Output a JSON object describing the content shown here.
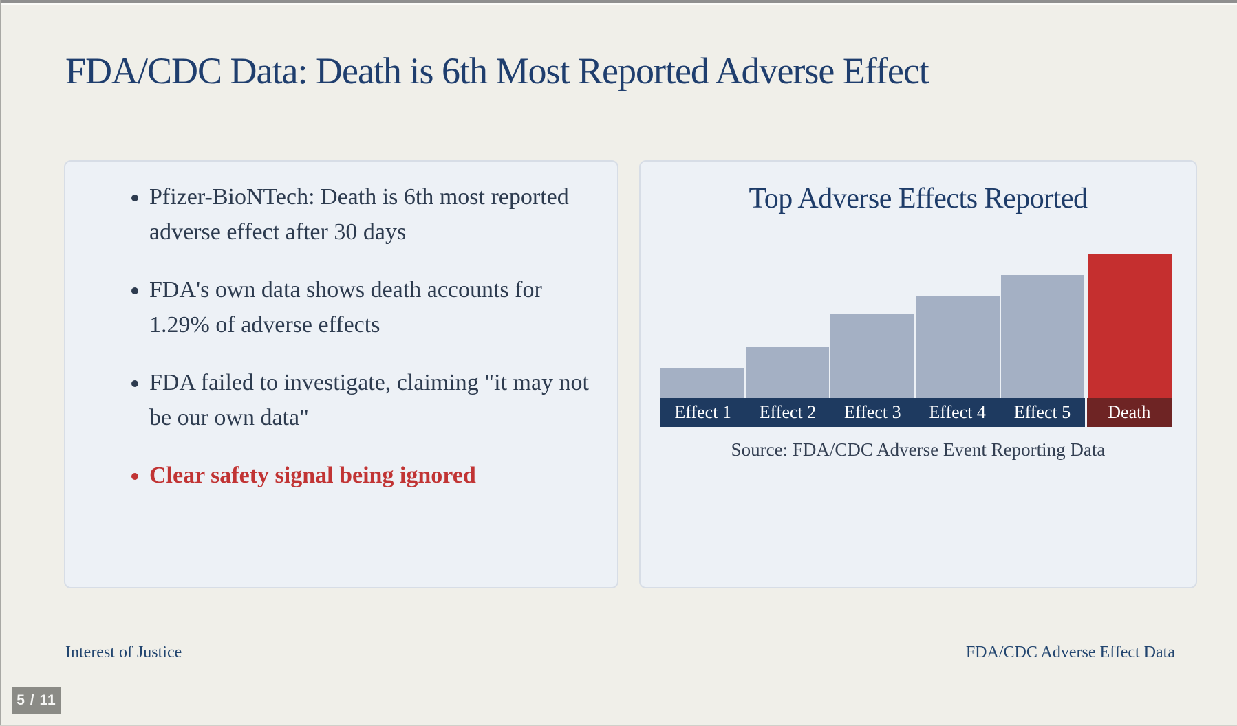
{
  "slide": {
    "title": "FDA/CDC Data: Death is 6th Most Reported Adverse Effect",
    "footer_left": "Interest of Justice",
    "footer_right": "FDA/CDC Adverse Effect Data",
    "page_indicator": "5 / 11"
  },
  "left_panel": {
    "bullets": [
      {
        "text": "Pfizer-BioNTech: Death is 6th most reported adverse effect after 30 days",
        "emphasis": false
      },
      {
        "text": "FDA's own data shows death accounts for 1.29% of adverse effects",
        "emphasis": false
      },
      {
        "text": "FDA failed to investigate, claiming \"it may not be our own data\"",
        "emphasis": false
      },
      {
        "text": "Clear safety signal being ignored",
        "emphasis": true
      }
    ]
  },
  "chart_data": {
    "type": "bar",
    "title": "Top Adverse Effects Reported",
    "categories": [
      "Effect 1",
      "Effect 2",
      "Effect 3",
      "Effect 4",
      "Effect 5",
      "Death"
    ],
    "values": [
      21,
      35,
      58,
      71,
      85,
      100
    ],
    "value_units": "relative bar height, percent of tallest bar (no y-axis shown; estimated from pixels)",
    "highlight_category": "Death",
    "source": "Source: FDA/CDC Adverse Event Reporting Data",
    "grid": false,
    "legend": false,
    "colors": {
      "bar": "#a4b0c4",
      "bar_highlight": "#c52f2f",
      "label_band": "#1e3a60",
      "label_band_highlight": "#6e2424"
    }
  },
  "colors": {
    "page_background": "#f0efe9",
    "card_background": "#edf1f6",
    "title_navy": "#1f3e6e",
    "body_text": "#2d3b4f",
    "alert_red": "#c13434",
    "indicator_gray": "#8b8b86"
  }
}
